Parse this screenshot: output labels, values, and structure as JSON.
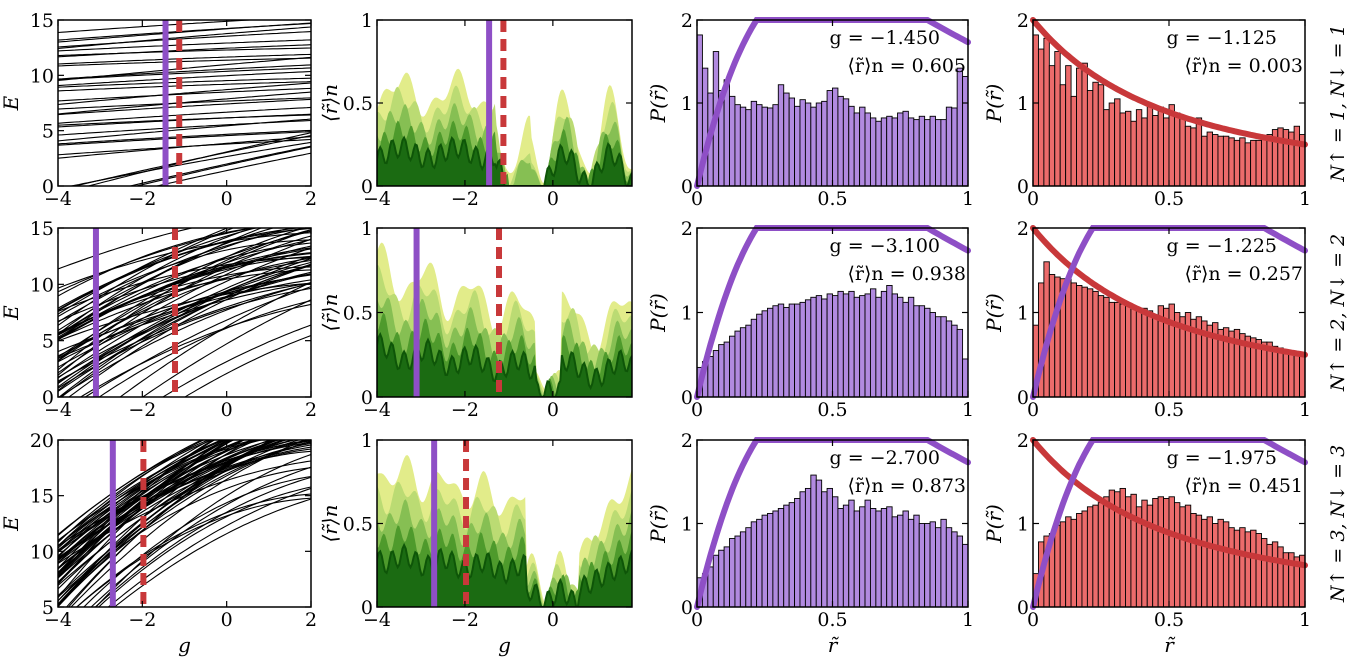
{
  "figure": {
    "row_labels": [
      "N↑ = 1, N↓ = 1",
      "N↑ = 2, N↓ = 2",
      "N↑ = 3, N↓ = 3"
    ],
    "colors": {
      "chaotic": "#8e4fc6",
      "integrable": "#c8383a",
      "hist_chaotic_fill": "#b18ae0",
      "hist_integrable_fill": "#ec6b6b",
      "green_shades": [
        "#e2ec8a",
        "#bbdb73",
        "#86bf53",
        "#4e9a2c",
        "#1b6b12"
      ]
    }
  },
  "chart_data": [
    {
      "type": "line",
      "id": "spectrum-row1",
      "xlabel": "",
      "ylabel": "E",
      "xlim": [
        -4,
        2
      ],
      "ylim": [
        0,
        15
      ],
      "xticks": [
        "-4",
        "-2",
        "0",
        "2"
      ],
      "yticks": [
        "0",
        "5",
        "10",
        "15"
      ],
      "markers": {
        "solid_g": -1.45,
        "dashed_g": -1.125
      }
    },
    {
      "type": "area",
      "id": "rmean-row1",
      "xlabel": "",
      "ylabel": "⟨r̃⟩n",
      "xlim": [
        -4,
        1.8
      ],
      "ylim": [
        0,
        1
      ],
      "xticks": [
        "-4",
        "-2",
        "0"
      ],
      "yticks": [
        "0",
        "0.5",
        "1"
      ],
      "markers": {
        "solid_g": -1.45,
        "dashed_g": -1.125
      }
    },
    {
      "type": "bar",
      "id": "hist-chaotic-row1",
      "xlabel": "",
      "ylabel": "P(r̃)",
      "xlim": [
        0,
        1
      ],
      "ylim": [
        0,
        2
      ],
      "xticks": [
        "0",
        "0.5",
        "1"
      ],
      "yticks": [
        "0",
        "1",
        "2"
      ],
      "g_label": "g = −1.450",
      "r_label": "⟨r̃⟩n = 0.605",
      "values": [
        1.82,
        1.42,
        1.12,
        1.62,
        1.15,
        1.28,
        1.08,
        0.98,
        0.95,
        0.92,
        1.02,
        0.98,
        0.95,
        0.94,
        0.98,
        1.22,
        1.12,
        1.06,
        0.96,
        1.04,
        1.0,
        0.95,
        1.0,
        1.02,
        1.15,
        1.18,
        1.08,
        1.05,
        0.96,
        0.88,
        0.95,
        0.88,
        0.82,
        0.78,
        0.82,
        0.84,
        0.82,
        0.88,
        0.9,
        0.82,
        0.8,
        0.84,
        0.8,
        0.84,
        0.8,
        0.8,
        0.95,
        0.94,
        1.42,
        1.32
      ]
    },
    {
      "type": "bar",
      "id": "hist-integrable-row1",
      "xlabel": "",
      "ylabel": "P(r̃)",
      "xlim": [
        0,
        1
      ],
      "ylim": [
        0,
        2
      ],
      "xticks": [
        "0",
        "0.5",
        "1"
      ],
      "yticks": [
        "0",
        "1",
        "2"
      ],
      "g_label": "g = −1.125",
      "r_label": "⟨r̃⟩n = 0.003",
      "values": [
        1.82,
        1.65,
        1.78,
        1.45,
        1.62,
        1.22,
        1.45,
        1.08,
        1.42,
        1.48,
        1.15,
        1.25,
        1.22,
        0.92,
        1.0,
        1.05,
        0.88,
        0.9,
        0.78,
        0.92,
        0.82,
        0.98,
        0.85,
        0.95,
        0.82,
        0.98,
        0.88,
        0.85,
        0.72,
        0.7,
        0.82,
        0.6,
        0.65,
        0.62,
        0.6,
        0.6,
        0.58,
        0.55,
        0.58,
        0.52,
        0.55,
        0.55,
        0.58,
        0.62,
        0.68,
        0.7,
        0.68,
        0.65,
        0.72,
        0.62
      ]
    },
    {
      "type": "line",
      "id": "spectrum-row2",
      "xlabel": "",
      "ylabel": "E",
      "xlim": [
        -4,
        2
      ],
      "ylim": [
        0,
        15
      ],
      "xticks": [
        "-4",
        "-2",
        "0",
        "2"
      ],
      "yticks": [
        "0",
        "5",
        "10",
        "15"
      ],
      "markers": {
        "solid_g": -3.1,
        "dashed_g": -1.225
      }
    },
    {
      "type": "area",
      "id": "rmean-row2",
      "xlabel": "",
      "ylabel": "⟨r̃⟩n",
      "xlim": [
        -4,
        1.8
      ],
      "ylim": [
        0,
        1
      ],
      "xticks": [
        "-4",
        "-2",
        "0"
      ],
      "yticks": [
        "0",
        "0.5",
        "1"
      ],
      "markers": {
        "solid_g": -3.1,
        "dashed_g": -1.225
      }
    },
    {
      "type": "bar",
      "id": "hist-chaotic-row2",
      "xlabel": "",
      "ylabel": "P(r̃)",
      "xlim": [
        0,
        1
      ],
      "ylim": [
        0,
        2
      ],
      "xticks": [
        "0",
        "0.5",
        "1"
      ],
      "yticks": [
        "0",
        "1",
        "2"
      ],
      "g_label": "g = −3.100",
      "r_label": "⟨r̃⟩n = 0.938",
      "values": [
        0.35,
        0.42,
        0.48,
        0.55,
        0.62,
        0.65,
        0.72,
        0.78,
        0.82,
        0.85,
        0.92,
        0.98,
        1.02,
        1.05,
        1.08,
        1.1,
        1.06,
        1.1,
        1.1,
        1.12,
        1.15,
        1.18,
        1.2,
        1.16,
        1.22,
        1.2,
        1.25,
        1.22,
        1.25,
        1.18,
        1.2,
        1.22,
        1.28,
        1.18,
        1.25,
        1.32,
        1.22,
        1.18,
        1.12,
        1.18,
        1.08,
        1.08,
        1.05,
        1.0,
        0.95,
        0.95,
        0.9,
        0.85,
        0.8,
        0.45
      ]
    },
    {
      "type": "bar",
      "id": "hist-integrable-row2",
      "xlabel": "",
      "ylabel": "P(r̃)",
      "xlim": [
        0,
        1
      ],
      "ylim": [
        0,
        2
      ],
      "xticks": [
        "0",
        "0.5",
        "1"
      ],
      "yticks": [
        "0",
        "1",
        "2"
      ],
      "g_label": "g = −1.225",
      "r_label": "⟨r̃⟩n = 0.257",
      "values": [
        0.85,
        1.35,
        1.6,
        1.45,
        1.42,
        1.4,
        1.4,
        1.35,
        1.32,
        1.3,
        1.28,
        1.25,
        1.2,
        1.18,
        1.12,
        1.12,
        1.1,
        1.08,
        1.05,
        1.02,
        1.05,
        1.02,
        0.95,
        1.08,
        1.05,
        1.1,
        1.0,
        0.95,
        1.0,
        0.92,
        0.95,
        0.9,
        0.85,
        0.88,
        0.8,
        0.82,
        0.78,
        0.8,
        0.75,
        0.72,
        0.7,
        0.68,
        0.65,
        0.65,
        0.6,
        0.58,
        0.55,
        0.55,
        0.52,
        0.5
      ]
    },
    {
      "type": "line",
      "id": "spectrum-row3",
      "xlabel": "g",
      "ylabel": "E",
      "xlim": [
        -4,
        2
      ],
      "ylim": [
        5,
        20
      ],
      "xticks": [
        "-4",
        "-2",
        "0",
        "2"
      ],
      "yticks": [
        "5",
        "10",
        "15",
        "20"
      ],
      "markers": {
        "solid_g": -2.7,
        "dashed_g": -1.975
      }
    },
    {
      "type": "area",
      "id": "rmean-row3",
      "xlabel": "g",
      "ylabel": "⟨r̃⟩n",
      "xlim": [
        -4,
        1.8
      ],
      "ylim": [
        0,
        1
      ],
      "xticks": [
        "-4",
        "-2",
        "0"
      ],
      "yticks": [
        "0",
        "0.5",
        "1"
      ],
      "markers": {
        "solid_g": -2.7,
        "dashed_g": -1.975
      }
    },
    {
      "type": "bar",
      "id": "hist-chaotic-row3",
      "xlabel": "r̃",
      "ylabel": "P(r̃)",
      "xlim": [
        0,
        1
      ],
      "ylim": [
        0,
        2
      ],
      "xticks": [
        "0",
        "0.5",
        "1"
      ],
      "yticks": [
        "0",
        "1",
        "2"
      ],
      "g_label": "g = −2.700",
      "r_label": "⟨r̃⟩n = 0.873",
      "values": [
        0.35,
        0.4,
        0.48,
        0.62,
        0.68,
        0.72,
        0.82,
        0.85,
        0.9,
        0.95,
        1.02,
        1.05,
        1.1,
        1.12,
        1.15,
        1.18,
        1.22,
        1.25,
        1.3,
        1.38,
        1.42,
        1.58,
        1.52,
        1.38,
        1.42,
        1.32,
        1.18,
        1.22,
        1.28,
        1.15,
        1.2,
        1.28,
        1.18,
        1.15,
        1.18,
        1.2,
        1.08,
        1.1,
        1.15,
        1.05,
        1.1,
        1.0,
        1.0,
        1.02,
        0.95,
        1.05,
        0.95,
        0.9,
        0.85,
        0.75
      ]
    },
    {
      "type": "bar",
      "id": "hist-integrable-row3",
      "xlabel": "r̃",
      "ylabel": "P(r̃)",
      "xlim": [
        0,
        1
      ],
      "ylim": [
        0,
        2
      ],
      "xticks": [
        "0",
        "0.5",
        "1"
      ],
      "yticks": [
        "0",
        "1",
        "2"
      ],
      "g_label": "g = −1.975",
      "r_label": "⟨r̃⟩n = 0.451",
      "values": [
        0.4,
        0.78,
        0.85,
        0.88,
        0.98,
        1.02,
        1.08,
        1.05,
        1.12,
        1.15,
        1.2,
        1.22,
        1.25,
        1.32,
        1.4,
        1.38,
        1.42,
        1.32,
        1.35,
        1.2,
        1.28,
        1.22,
        1.3,
        1.32,
        1.3,
        1.32,
        1.25,
        1.2,
        1.22,
        1.12,
        1.1,
        1.05,
        1.08,
        1.0,
        1.05,
        1.02,
        0.95,
        0.92,
        0.95,
        0.9,
        0.92,
        0.88,
        0.82,
        0.75,
        0.78,
        0.72,
        0.65,
        0.65,
        0.6,
        0.62
      ]
    }
  ]
}
